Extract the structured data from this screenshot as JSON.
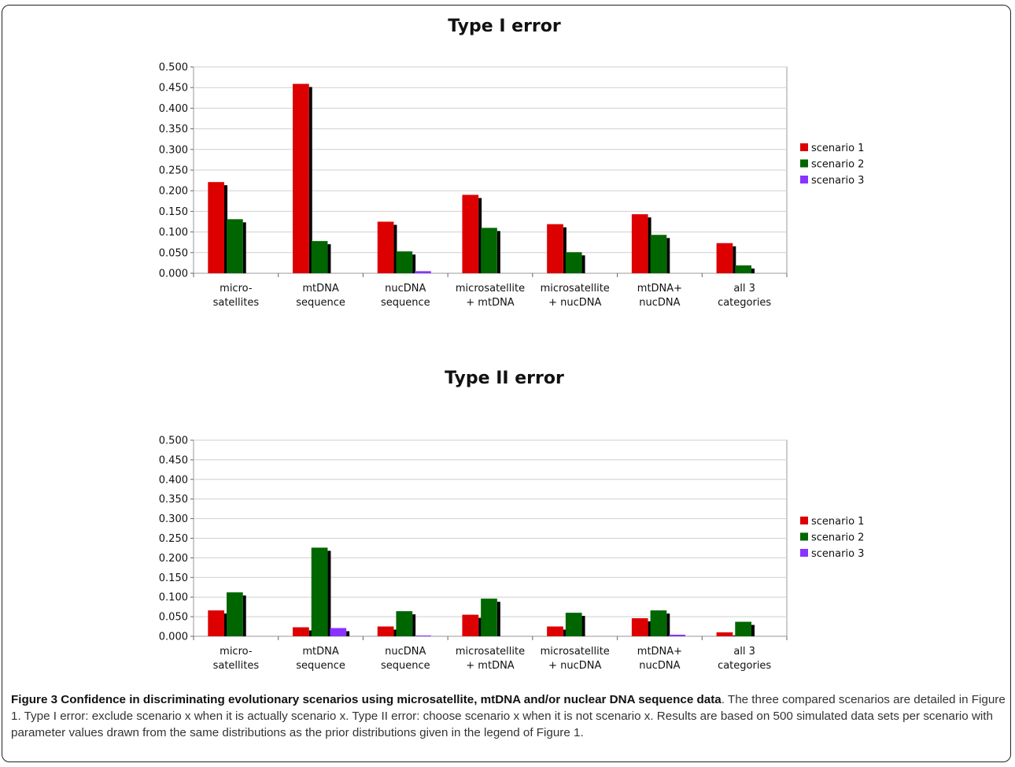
{
  "chart_data": [
    {
      "type": "bar",
      "title": "Type I error",
      "categories": [
        [
          "micro-",
          "satellites"
        ],
        [
          "mtDNA",
          "sequence"
        ],
        [
          "nucDNA",
          "sequence"
        ],
        [
          "microsatellite",
          "+ mtDNA"
        ],
        [
          "microsatellite",
          "+ nucDNA"
        ],
        [
          "mtDNA+",
          "nucDNA"
        ],
        [
          "all 3",
          "categories"
        ]
      ],
      "yticks": [
        "0.000",
        "0.050",
        "0.100",
        "0.150",
        "0.200",
        "0.250",
        "0.300",
        "0.350",
        "0.400",
        "0.450",
        "0.500"
      ],
      "ylim": [
        0,
        0.5
      ],
      "grid": true,
      "legend_position": "right",
      "series": [
        {
          "name": "scenario 1",
          "color": "#dd0000",
          "values": [
            0.221,
            0.459,
            0.125,
            0.19,
            0.119,
            0.143,
            0.073
          ]
        },
        {
          "name": "scenario 2",
          "color": "#006600",
          "values": [
            0.131,
            0.078,
            0.053,
            0.11,
            0.051,
            0.093,
            0.019
          ]
        },
        {
          "name": "scenario 3",
          "color": "#8833ff",
          "values": [
            0.0,
            0.0,
            0.005,
            0.0,
            0.0,
            0.0,
            0.0
          ]
        }
      ]
    },
    {
      "type": "bar",
      "title": "Type II error",
      "categories": [
        [
          "micro-",
          "satellites"
        ],
        [
          "mtDNA",
          "sequence"
        ],
        [
          "nucDNA",
          "sequence"
        ],
        [
          "microsatellite",
          "+ mtDNA"
        ],
        [
          "microsatellite",
          "+ nucDNA"
        ],
        [
          "mtDNA+",
          "nucDNA"
        ],
        [
          "all 3",
          "categories"
        ]
      ],
      "yticks": [
        "0.000",
        "0.050",
        "0.100",
        "0.150",
        "0.200",
        "0.250",
        "0.300",
        "0.350",
        "0.400",
        "0.450",
        "0.500"
      ],
      "ylim": [
        0,
        0.5
      ],
      "grid": true,
      "legend_position": "right",
      "series": [
        {
          "name": "scenario 1",
          "color": "#dd0000",
          "values": [
            0.066,
            0.023,
            0.025,
            0.055,
            0.025,
            0.046,
            0.01
          ]
        },
        {
          "name": "scenario 2",
          "color": "#006600",
          "values": [
            0.112,
            0.226,
            0.064,
            0.096,
            0.06,
            0.066,
            0.037
          ]
        },
        {
          "name": "scenario 3",
          "color": "#8833ff",
          "values": [
            0.0,
            0.021,
            0.002,
            0.0,
            0.0,
            0.004,
            0.0
          ]
        }
      ]
    }
  ],
  "caption": {
    "label": "Figure 3 Confidence in discriminating evolutionary scenarios using microsatellite, mtDNA and/or nuclear DNA sequence data",
    "text": ". The three compared scenarios are detailed in Figure 1. Type I error: exclude scenario x when it is actually scenario x. Type II error: choose scenario x when it is not scenario x. Results are based on 500 simulated data sets per scenario with parameter values drawn from the same distributions as the prior distributions given in the legend of Figure 1."
  }
}
